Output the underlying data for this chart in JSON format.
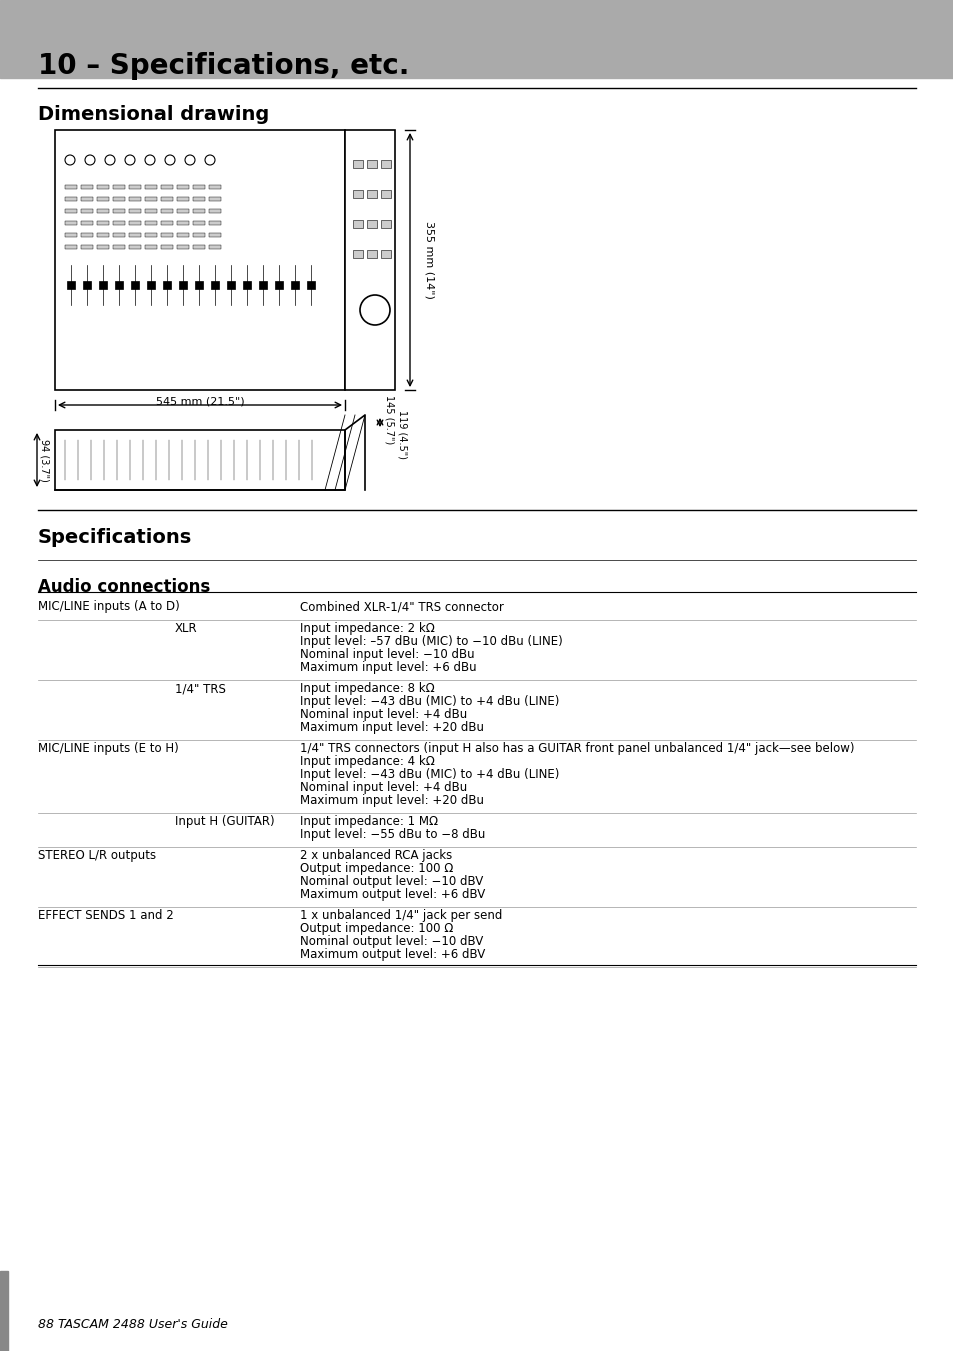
{
  "page_title": "10 – Specifications, etc.",
  "header_bg": "#aaaaaa",
  "header_text_color": "#000000",
  "section1_title": "Dimensional drawing",
  "section2_title": "Specifications",
  "section3_title": "Audio connections",
  "footer_text": "88 TASCAM 2488 User's Guide",
  "bg_color": "#ffffff",
  "dim1_width": "545 mm (21.5\")",
  "dim1_height": "355 mm (14\")",
  "dim2_depth1": "94 (3.7\")",
  "dim2_depth2": "119 (4.5\")",
  "dim2_depth3": "145 (5.7\")",
  "audio_table": [
    {
      "col1": "MIC/LINE inputs (A to D)",
      "col2": "",
      "col3": "Combined XLR-1/4\" TRS connector"
    },
    {
      "col1": "",
      "col2": "XLR",
      "col3": "Input impedance: 2 kΩ\nInput level: –57 dBu (MIC) to −10 dBu (LINE)\nNominal input level: −10 dBu\nMaximum input level: +6 dBu"
    },
    {
      "col1": "",
      "col2": "1/4\" TRS",
      "col3": "Input impedance: 8 kΩ\nInput level: −43 dBu (MIC) to +4 dBu (LINE)\nNominal input level: +4 dBu\nMaximum input level: +20 dBu"
    },
    {
      "col1": "MIC/LINE inputs (E to H)",
      "col2": "",
      "col3": "1/4\" TRS connectors (input H also has a GUITAR front panel unbalanced 1/4\" jack—see below)\nInput impedance: 4 kΩ\nInput level: −43 dBu (MIC) to +4 dBu (LINE)\nNominal input level: +4 dBu\nMaximum input level: +20 dBu"
    },
    {
      "col1": "",
      "col2": "Input H (GUITAR)",
      "col3": "Input impedance: 1 MΩ\nInput level: −55 dBu to −8 dBu"
    },
    {
      "col1": "STEREO L/R outputs",
      "col2": "",
      "col3": "2 x unbalanced RCA jacks\nOutput impedance: 100 Ω\nNominal output level: −10 dBV\nMaximum output level: +6 dBV"
    },
    {
      "col1": "EFFECT SENDS 1 and 2",
      "col2": "",
      "col3": "1 x unbalanced 1/4\" jack per send\nOutput impedance: 100 Ω\nNominal output level: −10 dBV\nMaximum output level: +6 dBV"
    }
  ]
}
